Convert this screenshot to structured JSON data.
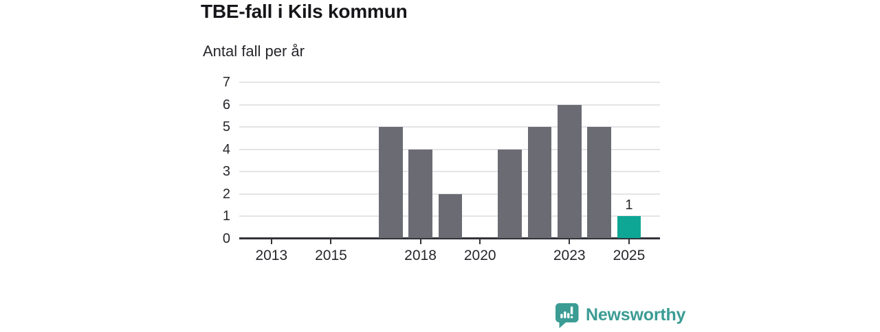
{
  "header": {
    "note": ""
  },
  "footer": {
    "brand": "Newsworthy"
  },
  "colors": {
    "bar": "#6b6b74",
    "highlight": "#0ea795",
    "axis": "#32323a",
    "grid": "#e4e4e6",
    "title_text": "#16161a",
    "body_text": "#26262b",
    "brand": "#3b9c94"
  },
  "chart_data": {
    "type": "bar",
    "title": "TBE-fall i Kils kommun",
    "subtitle": "Antal fall per år",
    "x": [
      2012,
      2013,
      2014,
      2015,
      2016,
      2017,
      2018,
      2019,
      2020,
      2021,
      2022,
      2023,
      2024,
      2025
    ],
    "values": [
      0,
      0,
      0,
      0,
      0,
      5,
      4,
      2,
      0,
      4,
      5,
      6,
      5,
      1
    ],
    "highlight_x": 2025,
    "bar_labels": [
      {
        "x": 2025,
        "text": "1"
      }
    ],
    "xticks": [
      2013,
      2015,
      2018,
      2020,
      2023,
      2025
    ],
    "yticks": [
      0,
      1,
      2,
      3,
      4,
      5,
      6,
      7
    ],
    "ylim": [
      0,
      7
    ],
    "xlim": [
      2011.92,
      2026.04
    ],
    "bar_width_years": 0.8,
    "grid": "horizontal",
    "legend": "none",
    "xlabel": "",
    "ylabel": ""
  }
}
